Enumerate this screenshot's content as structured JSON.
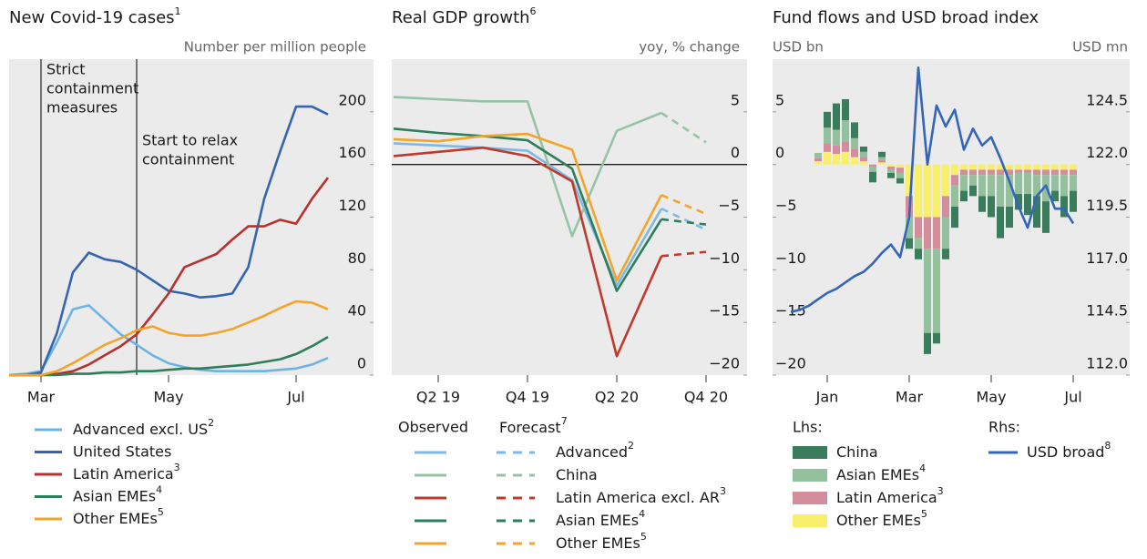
{
  "chart_data": [
    {
      "type": "line",
      "title": "New Covid-19 cases",
      "title_note": "1",
      "y_label": "Number per million people",
      "categories": [
        null,
        null,
        "Mar",
        null,
        null,
        null,
        null,
        null,
        null,
        null,
        "May",
        null,
        null,
        null,
        null,
        null,
        null,
        null,
        "Jul",
        null,
        null
      ],
      "ylim": [
        0,
        240
      ],
      "yticks": [
        0,
        40,
        80,
        120,
        160,
        200
      ],
      "annotations": [
        {
          "text": [
            "Strict",
            "containment",
            "measures"
          ],
          "x": 2
        },
        {
          "text": [
            "Start to relax",
            "containment"
          ],
          "x": 8
        }
      ],
      "series": [
        {
          "name": "Advanced excl. US",
          "note": "2",
          "color": "#6cb4e4",
          "values": [
            0,
            1,
            3,
            25,
            50,
            53,
            42,
            31,
            23,
            15,
            9,
            6,
            4,
            3,
            3,
            3,
            3,
            4,
            5,
            8,
            13
          ]
        },
        {
          "name": "United States",
          "color": "#3565b0",
          "values": [
            0,
            0,
            2,
            32,
            78,
            93,
            88,
            86,
            80,
            72,
            64,
            62,
            59,
            60,
            62,
            82,
            134,
            170,
            204,
            204,
            198
          ]
        },
        {
          "name": "Latin America",
          "note": "3",
          "color": "#b8312f",
          "values": [
            0,
            0,
            0,
            1,
            3,
            8,
            15,
            22,
            31,
            46,
            62,
            82,
            87,
            92,
            103,
            113,
            113,
            118,
            115,
            134,
            150
          ]
        },
        {
          "name": "Asian EMEs",
          "note": "4",
          "color": "#2e7d5b",
          "values": [
            0,
            0,
            0,
            0,
            1,
            1,
            2,
            2,
            3,
            3,
            4,
            5,
            5,
            6,
            7,
            8,
            10,
            12,
            16,
            22,
            29
          ]
        },
        {
          "name": "Other EMEs",
          "note": "5",
          "color": "#f2a52a",
          "values": [
            0,
            0,
            0,
            3,
            9,
            16,
            23,
            28,
            34,
            37,
            32,
            30,
            30,
            32,
            35,
            40,
            45,
            51,
            56,
            55,
            50
          ]
        }
      ]
    },
    {
      "type": "line",
      "title": "Real GDP growth",
      "title_note": "6",
      "y_label": "yoy, % change",
      "categories": [
        null,
        "Q2 19",
        null,
        "Q4 19",
        null,
        "Q2 20",
        null,
        "Q4 20"
      ],
      "ylim": [
        -20,
        10
      ],
      "yticks": [
        5,
        0,
        {
          "value": -5,
          "label": "−5"
        },
        {
          "value": -10,
          "label": "−10"
        },
        {
          "value": -15,
          "label": "−15"
        },
        {
          "value": -20,
          "label": "−20"
        }
      ],
      "zero_line": true,
      "legend_observed": "Observed",
      "legend_forecast": "Forecast",
      "legend_forecast_note": "7",
      "series": [
        {
          "name": "Advanced",
          "note": "2",
          "color": "#7db9e8",
          "values": [
            2.0,
            1.8,
            1.6,
            1.3,
            -1.5,
            -11.5,
            -4.2,
            null
          ],
          "forecast": [
            null,
            null,
            null,
            null,
            null,
            null,
            null,
            -6.2
          ]
        },
        {
          "name": "China",
          "color": "#96c3a5",
          "values": [
            6.4,
            6.2,
            6.0,
            6.0,
            -6.8,
            3.2,
            4.9,
            null
          ],
          "forecast": [
            null,
            null,
            null,
            null,
            null,
            null,
            null,
            2.1
          ]
        },
        {
          "name": "Latin America excl. AR",
          "note": "3",
          "color": "#c0392b",
          "values": [
            0.8,
            1.2,
            1.6,
            0.8,
            -1.6,
            -18.2,
            -8.7,
            null
          ],
          "forecast": [
            null,
            null,
            null,
            null,
            null,
            null,
            null,
            -8.3
          ]
        },
        {
          "name": "Asian EMEs",
          "note": "4",
          "color": "#2e7d5b",
          "values": [
            3.4,
            3.0,
            2.7,
            2.3,
            -0.4,
            -12.0,
            -5.2,
            null
          ],
          "forecast": [
            null,
            null,
            null,
            null,
            null,
            null,
            null,
            -5.7
          ]
        },
        {
          "name": "Other EMEs",
          "note": "5",
          "color": "#f2a52a",
          "values": [
            2.4,
            2.2,
            2.7,
            2.9,
            1.4,
            -11.0,
            -2.9,
            null
          ],
          "forecast": [
            null,
            null,
            null,
            null,
            null,
            null,
            null,
            -4.7
          ]
        }
      ]
    },
    {
      "type": "combo",
      "title": "Fund flows and USD broad index",
      "y_label": "USD bn",
      "y2_label": "USD mn",
      "categories": [
        null,
        null,
        null,
        null,
        "Jan",
        null,
        null,
        null,
        null,
        null,
        null,
        null,
        null,
        "Mar",
        null,
        null,
        null,
        null,
        null,
        null,
        null,
        null,
        "May",
        null,
        null,
        null,
        null,
        null,
        null,
        null,
        null,
        "Jul"
      ],
      "ylim": [
        -20,
        10
      ],
      "yticks": [
        5,
        0,
        {
          "value": -5,
          "label": "−5"
        },
        {
          "value": -10,
          "label": "−10"
        },
        {
          "value": -15,
          "label": "−15"
        },
        {
          "value": -20,
          "label": "−20"
        }
      ],
      "y2lim": [
        112,
        127
      ],
      "y2ticks": [
        124.5,
        {
          "value": 122,
          "label": "122.0"
        },
        119.5,
        {
          "value": 117,
          "label": "117.0"
        },
        114.5,
        {
          "value": 112,
          "label": "112.0"
        }
      ],
      "stacked": true,
      "legend_groups": [
        "Lhs:",
        "Rhs:"
      ],
      "series": [
        {
          "name": "China",
          "type": "bar",
          "color": "#3a7d5c",
          "values": [
            null,
            null,
            null,
            0,
            1.5,
            2.5,
            2,
            1.5,
            0.5,
            -1,
            0.5,
            -0.5,
            -0.5,
            -1,
            -1,
            -2,
            -1,
            -1,
            -2,
            -1,
            -1,
            -1.5,
            -2,
            -3,
            -2,
            -1.5,
            -2,
            -3,
            -3,
            -1,
            -2,
            -2
          ]
        },
        {
          "name": "Asian EMEs",
          "note": "4",
          "type": "bar",
          "color": "#93c19d",
          "values": [
            null,
            null,
            null,
            0.5,
            1.5,
            1.5,
            2,
            1,
            0.5,
            -0.5,
            0.3,
            -0.3,
            -0.5,
            -2,
            -1,
            -8,
            -8,
            -3,
            -2,
            -1.5,
            -1,
            -2,
            -2,
            -3,
            -3,
            -2,
            -2,
            -2,
            -2.5,
            -1.5,
            -2,
            -1.5
          ]
        },
        {
          "name": "Latin America",
          "note": "3",
          "type": "bar",
          "color": "#d48d9c",
          "values": [
            null,
            null,
            null,
            0.3,
            0.8,
            0.8,
            1,
            0.8,
            0.4,
            -0.2,
            0.2,
            -0.3,
            -0.5,
            -2,
            -2,
            -3,
            -3,
            -2,
            -1,
            -0.5,
            -0.5,
            -0.5,
            -0.5,
            -0.5,
            -0.5,
            -0.3,
            -0.3,
            -0.5,
            -0.5,
            -0.5,
            -0.5,
            -0.5
          ]
        },
        {
          "name": "Other EMEs",
          "note": "5",
          "type": "bar",
          "color": "#f8ef6a",
          "values": [
            null,
            null,
            null,
            0.3,
            1.2,
            1,
            1.2,
            0.7,
            0.3,
            0,
            0.2,
            -0.2,
            -0.3,
            -3,
            -5,
            -5,
            -5,
            -3,
            -1,
            -0.5,
            -0.5,
            -0.5,
            -0.5,
            -0.5,
            -0.5,
            -0.5,
            -0.5,
            -0.5,
            -0.5,
            -0.5,
            -0.5,
            -0.5
          ]
        },
        {
          "name": "USD broad",
          "note": "8",
          "type": "line",
          "axis": "y2",
          "color": "#3366b8",
          "values": [
            115.0,
            115.1,
            115.3,
            115.6,
            115.9,
            116.1,
            116.4,
            116.7,
            116.9,
            117.3,
            117.8,
            118.2,
            117.6,
            119.5,
            126.6,
            122.0,
            124.8,
            123.8,
            124.6,
            122.7,
            123.7,
            122.9,
            123.3,
            122.3,
            121.2,
            120.0,
            119.0,
            120.5,
            121.0,
            119.9,
            119.9,
            119.2
          ]
        }
      ]
    }
  ]
}
